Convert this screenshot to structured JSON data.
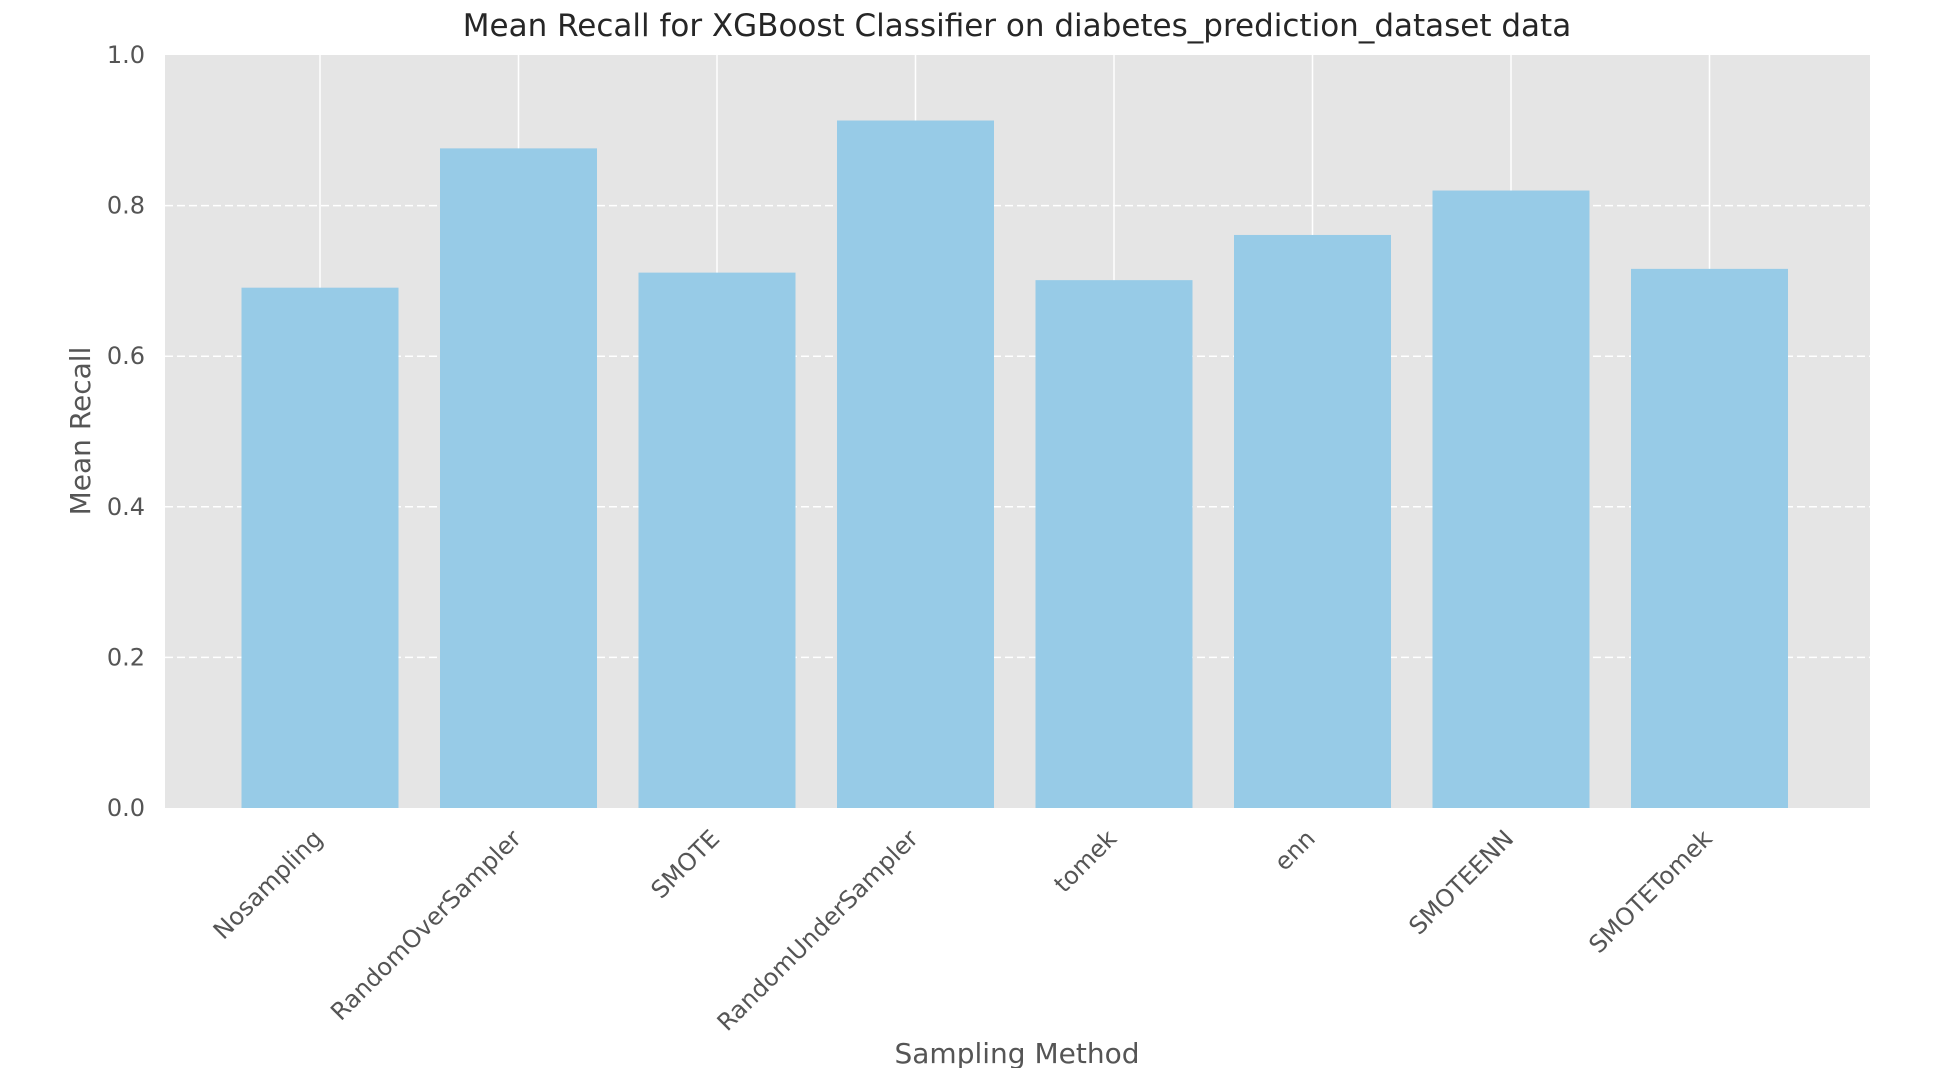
{
  "chart_data": {
    "type": "bar",
    "title": "Mean Recall for XGBoost Classifier on diabetes_prediction_dataset data",
    "xlabel": "Sampling Method",
    "ylabel": "Mean Recall",
    "categories": [
      "Nosampling",
      "RandomOverSampler",
      "SMOTE",
      "RandomUnderSampler",
      "tomek",
      "enn",
      "SMOTEENN",
      "SMOTETomek"
    ],
    "values": [
      0.691,
      0.876,
      0.711,
      0.913,
      0.701,
      0.761,
      0.82,
      0.716
    ],
    "ylim": [
      0,
      1.0
    ],
    "yticks": [
      "0.0",
      "0.2",
      "0.4",
      "0.6",
      "0.8",
      "1.0"
    ],
    "grid": "on",
    "bar_color": "#97cbe7",
    "plot_background": "#e5e5e5"
  }
}
